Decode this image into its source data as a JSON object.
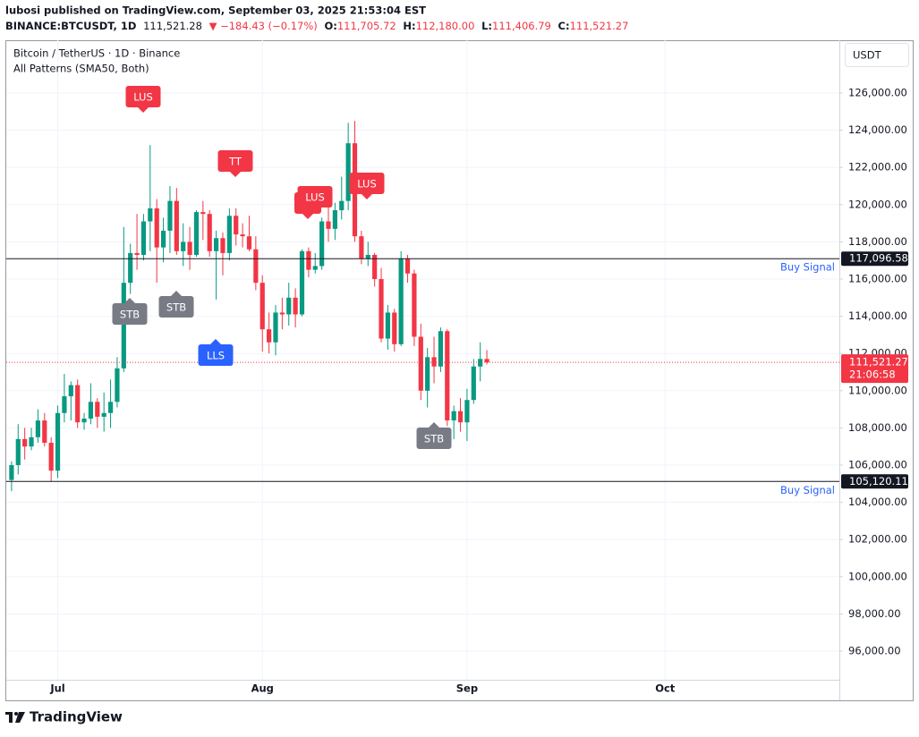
{
  "header": {
    "byline": "lubosi published on TradingView.com, September 03, 2025 21:53:04 EST",
    "symbol": "BINANCE:BTCUSDT, 1D",
    "price": "111,521.28",
    "change": "▼ −184.43 (−0.17%)",
    "ohlc": [
      [
        "O:",
        "111,705.72"
      ],
      [
        "H:",
        "112,180.00"
      ],
      [
        "L:",
        "111,406.79"
      ],
      [
        "C:",
        "111,521.27"
      ]
    ]
  },
  "chart_data": {
    "type": "candlestick",
    "title": "Bitcoin / TetherUS · 1D · Binance",
    "subtitle": "All Patterns (SMA50, Both)",
    "currency": "USDT",
    "up_color": "#089981",
    "down_color": "#f23645",
    "open": [
      105200,
      106000,
      107400,
      107000,
      107500,
      108400,
      107200,
      105700,
      108800,
      109700,
      110300,
      108300,
      108500,
      109400,
      108600,
      108800,
      109400,
      111200,
      115800,
      117400,
      117300,
      119100,
      119800,
      117700,
      118600,
      120200,
      117500,
      118000,
      117300,
      119600,
      119500,
      117500,
      118200,
      117400,
      119400,
      118400,
      118300,
      117600,
      115800,
      113300,
      112600,
      114200,
      114100,
      115000,
      114100,
      117500,
      116500,
      116700,
      119100,
      118700,
      119700,
      120200,
      123300,
      118300,
      117100,
      117300,
      116000,
      112800,
      114200,
      112500,
      117100,
      116300,
      112900,
      110000,
      111800,
      111300,
      113200,
      108400,
      108900,
      108300,
      109500,
      111300,
      111705.72
    ],
    "high": [
      106200,
      108200,
      108000,
      108000,
      109000,
      108800,
      107500,
      109200,
      110900,
      110500,
      110600,
      108800,
      110400,
      109600,
      109900,
      110600,
      111800,
      118800,
      117900,
      119500,
      119500,
      123200,
      120300,
      119300,
      121000,
      120900,
      119000,
      118800,
      119700,
      120200,
      119700,
      118600,
      118500,
      119800,
      119800,
      119000,
      119400,
      118300,
      116200,
      114200,
      114600,
      115000,
      115800,
      115500,
      117600,
      117700,
      117400,
      119300,
      120000,
      120100,
      121500,
      124400,
      124500,
      118600,
      118000,
      117400,
      116600,
      114600,
      114400,
      117500,
      117300,
      116500,
      113600,
      112300,
      112900,
      113400,
      113300,
      109200,
      109600,
      110100,
      111700,
      112600,
      112180
    ],
    "low": [
      104600,
      105500,
      106300,
      106800,
      107200,
      107000,
      105100,
      105300,
      108300,
      108400,
      108000,
      107900,
      108200,
      108000,
      107800,
      108000,
      109100,
      111000,
      115200,
      116500,
      117000,
      117500,
      115800,
      116900,
      117400,
      117300,
      116700,
      116500,
      117200,
      118100,
      117200,
      114900,
      116200,
      117000,
      117800,
      117700,
      117500,
      115400,
      112100,
      112000,
      111900,
      113300,
      113500,
      113400,
      114000,
      116100,
      116300,
      116500,
      118000,
      118100,
      119200,
      119700,
      118000,
      116800,
      116700,
      115600,
      112600,
      112200,
      112100,
      112400,
      115800,
      112400,
      109500,
      109100,
      110400,
      111000,
      108100,
      107400,
      107800,
      107300,
      109300,
      110500,
      111406.79
    ],
    "close": [
      106000,
      107400,
      107000,
      107500,
      108400,
      107200,
      105700,
      108800,
      109700,
      110300,
      108300,
      108500,
      109400,
      108600,
      108800,
      109400,
      111200,
      115800,
      117400,
      117300,
      119100,
      119800,
      117700,
      118600,
      120200,
      117500,
      118000,
      117300,
      119600,
      119500,
      117500,
      118200,
      117400,
      119400,
      118400,
      118300,
      117600,
      115800,
      113300,
      112600,
      114200,
      114100,
      115000,
      114100,
      117500,
      116500,
      116700,
      119100,
      118700,
      119700,
      120200,
      123300,
      118300,
      117100,
      117300,
      116000,
      112800,
      114200,
      112500,
      117100,
      116300,
      112900,
      110000,
      111800,
      111300,
      113200,
      108400,
      108900,
      108300,
      109500,
      111300,
      111705.72,
      111521.27
    ],
    "xlim": [
      -0.8,
      125.4
    ],
    "xticks": [
      {
        "value": 7,
        "label": "Jul"
      },
      {
        "value": 38,
        "label": "Aug"
      },
      {
        "value": 69,
        "label": "Sep"
      },
      {
        "value": 99,
        "label": "Oct"
      }
    ],
    "ylim": [
      94462,
      128837
    ],
    "yticks": [
      {
        "value": 96000,
        "label": "96,000.00"
      },
      {
        "value": 98000,
        "label": "98,000.00"
      },
      {
        "value": 100000,
        "label": "100,000.00"
      },
      {
        "value": 102000,
        "label": "102,000.00"
      },
      {
        "value": 104000,
        "label": "104,000.00"
      },
      {
        "value": 106000,
        "label": "106,000.00"
      },
      {
        "value": 108000,
        "label": "108,000.00"
      },
      {
        "value": 110000,
        "label": "110,000.00"
      },
      {
        "value": 112000,
        "label": "112,000.00"
      },
      {
        "value": 114000,
        "label": "114,000.00"
      },
      {
        "value": 116000,
        "label": "116,000.00"
      },
      {
        "value": 118000,
        "label": "118,000.00"
      },
      {
        "value": 120000,
        "label": "120,000.00"
      },
      {
        "value": 122000,
        "label": "122,000.00"
      },
      {
        "value": 124000,
        "label": "124,000.00"
      },
      {
        "value": 126000,
        "label": "126,000.00"
      }
    ],
    "grid": true,
    "hlines": [
      {
        "value": 117096.58,
        "label": "117,096.58",
        "note": "Buy Signal"
      },
      {
        "value": 105120.11,
        "label": "105,120.11",
        "note": "Buy Signal"
      }
    ],
    "last_price": {
      "value": 111521.27,
      "label": "111,521.27",
      "countdown": "21:06:58"
    },
    "patterns": [
      "LUS",
      "TT",
      "LUS",
      "LUS",
      "STB",
      "STB",
      "LLS",
      "STB"
    ]
  },
  "footer": {
    "brand": "TradingView"
  }
}
